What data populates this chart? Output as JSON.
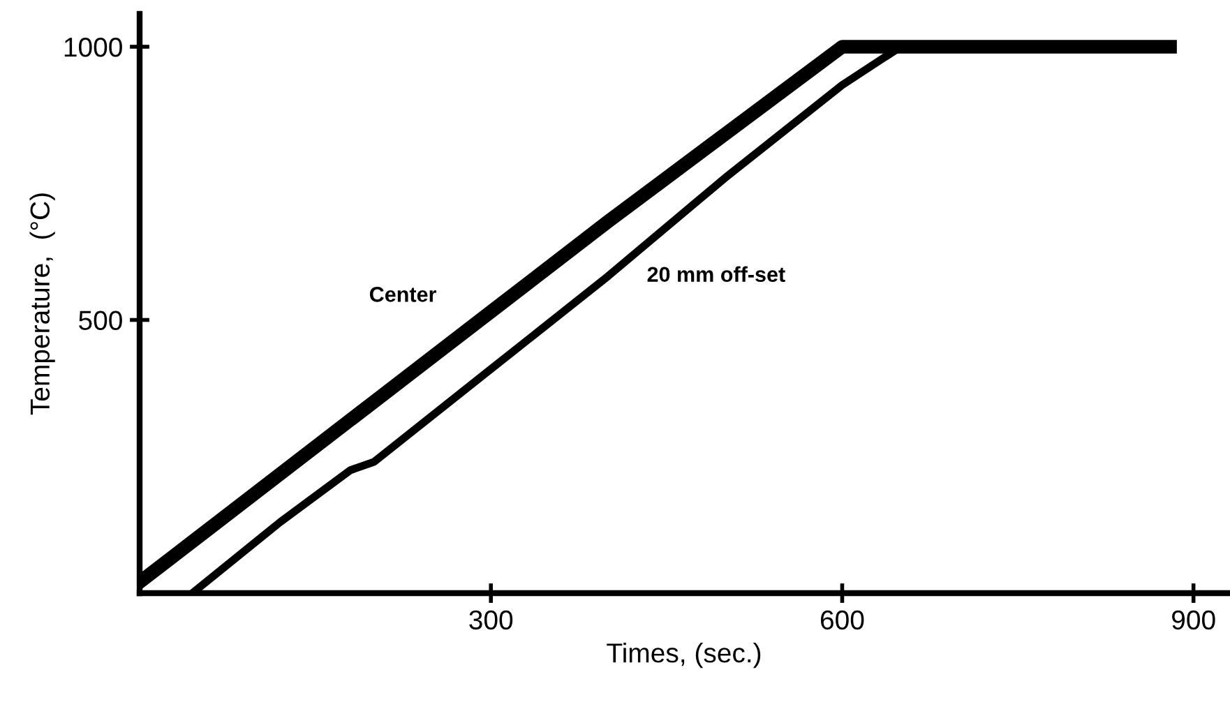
{
  "chart_data": {
    "type": "line",
    "xlabel": "Times, (sec.)",
    "ylabel": "Temperature,  (°C)",
    "xlim": [
      0,
      930
    ],
    "ylim": [
      0,
      1060
    ],
    "xticks": [
      300,
      600,
      900
    ],
    "yticks": [
      500,
      1000
    ],
    "grid": false,
    "legend": false,
    "marker": "none",
    "line_style": "solid",
    "series": [
      {
        "name": "Center",
        "color": "#000000",
        "x": [
          0,
          100,
          200,
          300,
          400,
          500,
          600,
          700,
          800,
          880
        ],
        "values": [
          20,
          185,
          350,
          515,
          680,
          840,
          1000,
          1000,
          1000,
          1000
        ]
      },
      {
        "name": "20 mm off-set",
        "color": "#000000",
        "x": [
          45,
          120,
          180,
          200,
          300,
          400,
          500,
          600,
          650,
          700,
          800,
          880
        ],
        "values": [
          0,
          130,
          225,
          240,
          410,
          580,
          760,
          930,
          1000,
          1000,
          1000,
          1000
        ]
      }
    ]
  }
}
